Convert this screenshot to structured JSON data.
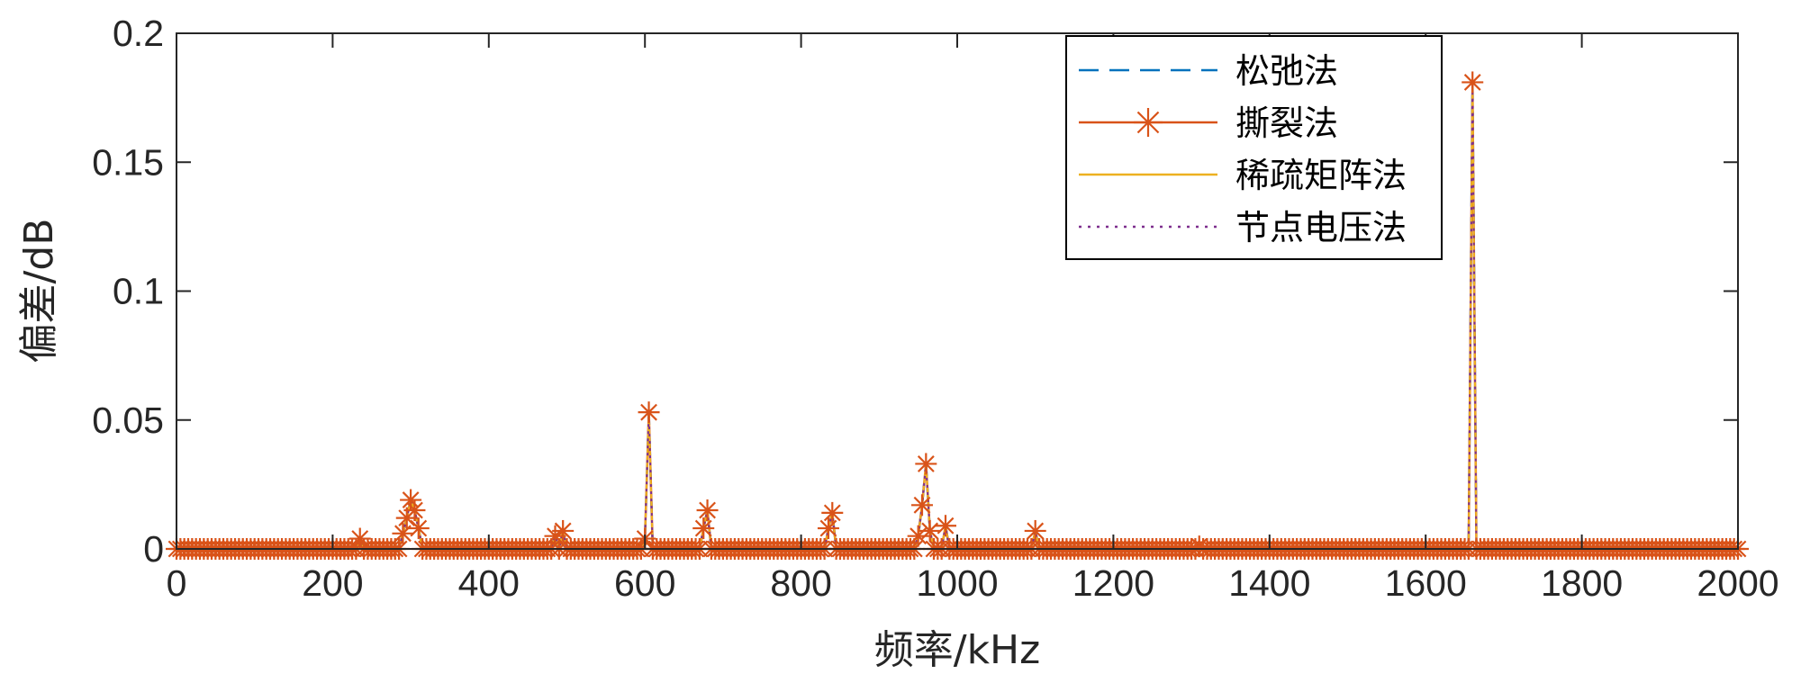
{
  "chart_data": {
    "type": "line",
    "xlabel": "频率/kHz",
    "ylabel": "偏差/dB",
    "xlim": [
      0,
      2000
    ],
    "ylim": [
      0,
      0.2
    ],
    "xticks": [
      0,
      200,
      400,
      600,
      800,
      1000,
      1200,
      1400,
      1600,
      1800,
      2000
    ],
    "yticks": [
      0,
      0.05,
      0.1,
      0.15,
      0.2
    ],
    "ytick_labels": [
      "0",
      "0.05",
      "0.1",
      "0.15",
      "0.2"
    ],
    "grid": false,
    "legend_position": "top-right",
    "colors": {
      "松弛法": "#0072BD",
      "撕裂法": "#D95319",
      "稀疏矩阵法": "#EDB120",
      "节点电压法": "#7E2F8E"
    },
    "series": [
      {
        "name": "松弛法",
        "style": "dashed"
      },
      {
        "name": "撕裂法",
        "style": "solid-asterisk"
      },
      {
        "name": "稀疏矩阵法",
        "style": "solid"
      },
      {
        "name": "节点电压法",
        "style": "dotted"
      }
    ],
    "x_step": 5,
    "peaks": [
      [
        235,
        0.004
      ],
      [
        290,
        0.006
      ],
      [
        295,
        0.012
      ],
      [
        300,
        0.019
      ],
      [
        305,
        0.015
      ],
      [
        310,
        0.008
      ],
      [
        485,
        0.005
      ],
      [
        495,
        0.007
      ],
      [
        600,
        0.004
      ],
      [
        605,
        0.053
      ],
      [
        675,
        0.008
      ],
      [
        680,
        0.015
      ],
      [
        835,
        0.008
      ],
      [
        840,
        0.014
      ],
      [
        950,
        0.005
      ],
      [
        955,
        0.017
      ],
      [
        960,
        0.033
      ],
      [
        965,
        0.007
      ],
      [
        985,
        0.009
      ],
      [
        1100,
        0.007
      ],
      [
        1310,
        0.001
      ],
      [
        1660,
        0.181
      ]
    ]
  }
}
